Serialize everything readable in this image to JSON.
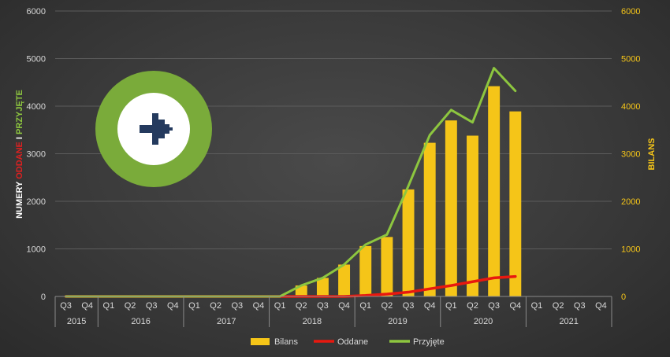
{
  "chart_data": {
    "type": "bar+line",
    "x": {
      "quarters": [
        "Q3",
        "Q4",
        "Q1",
        "Q2",
        "Q3",
        "Q4",
        "Q1",
        "Q2",
        "Q3",
        "Q4",
        "Q1",
        "Q2",
        "Q3",
        "Q4",
        "Q1",
        "Q2",
        "Q3",
        "Q4",
        "Q1",
        "Q2",
        "Q3",
        "Q4",
        "Q1",
        "Q2",
        "Q3",
        "Q4"
      ],
      "years": [
        {
          "label": "2015",
          "span": 2
        },
        {
          "label": "2016",
          "span": 4
        },
        {
          "label": "2017",
          "span": 4
        },
        {
          "label": "2018",
          "span": 4
        },
        {
          "label": "2019",
          "span": 4
        },
        {
          "label": "2020",
          "span": 4
        },
        {
          "label": "2021",
          "span": 4
        }
      ]
    },
    "ylim_left": [
      0,
      6000
    ],
    "ylim_right": [
      0,
      6000
    ],
    "yticks_left": [
      "0",
      "1000",
      "2000",
      "3000",
      "4000",
      "5000",
      "6000"
    ],
    "yticks_right": [
      "0",
      "1000",
      "2000",
      "3000",
      "4000",
      "5000",
      "6000"
    ],
    "ylabel_left_parts": [
      {
        "text": "NUMERY ",
        "color": "#ffffff"
      },
      {
        "text": "ODDANE",
        "color": "#e02020"
      },
      {
        "text": " I ",
        "color": "#ffffff"
      },
      {
        "text": "PRZYJĘTE",
        "color": "#8dc63f"
      }
    ],
    "ylabel_right": "BILANS",
    "series": [
      {
        "name": "Bilans",
        "type": "bar",
        "color": "#f5c518",
        "values": [
          null,
          null,
          null,
          null,
          null,
          null,
          null,
          null,
          null,
          null,
          null,
          230,
          390,
          670,
          1060,
          1250,
          2250,
          3230,
          3700,
          3380,
          4420,
          3890,
          null,
          null,
          null,
          null
        ]
      },
      {
        "name": "Oddane",
        "type": "line",
        "color": "#e8180f",
        "values": [
          0,
          0,
          0,
          0,
          0,
          0,
          0,
          0,
          0,
          0,
          0,
          0,
          0,
          0,
          20,
          50,
          90,
          160,
          230,
          310,
          390,
          420,
          null,
          null,
          null,
          null
        ]
      },
      {
        "name": "Przyjęte",
        "type": "line",
        "color": "#8dc63f",
        "values": [
          0,
          0,
          0,
          0,
          0,
          0,
          0,
          0,
          0,
          0,
          0,
          230,
          390,
          670,
          1090,
          1300,
          2320,
          3390,
          3920,
          3660,
          4800,
          4320,
          null,
          null,
          null,
          null
        ]
      }
    ],
    "legend": [
      "Bilans",
      "Oddane",
      "Przyjęte"
    ],
    "legend_position": "bottom",
    "grid": true
  },
  "logo": {
    "name": "arrow-right-logo",
    "ring_color": "#7aab3a",
    "inner_color": "#ffffff",
    "arrow_color": "#243a5e"
  }
}
